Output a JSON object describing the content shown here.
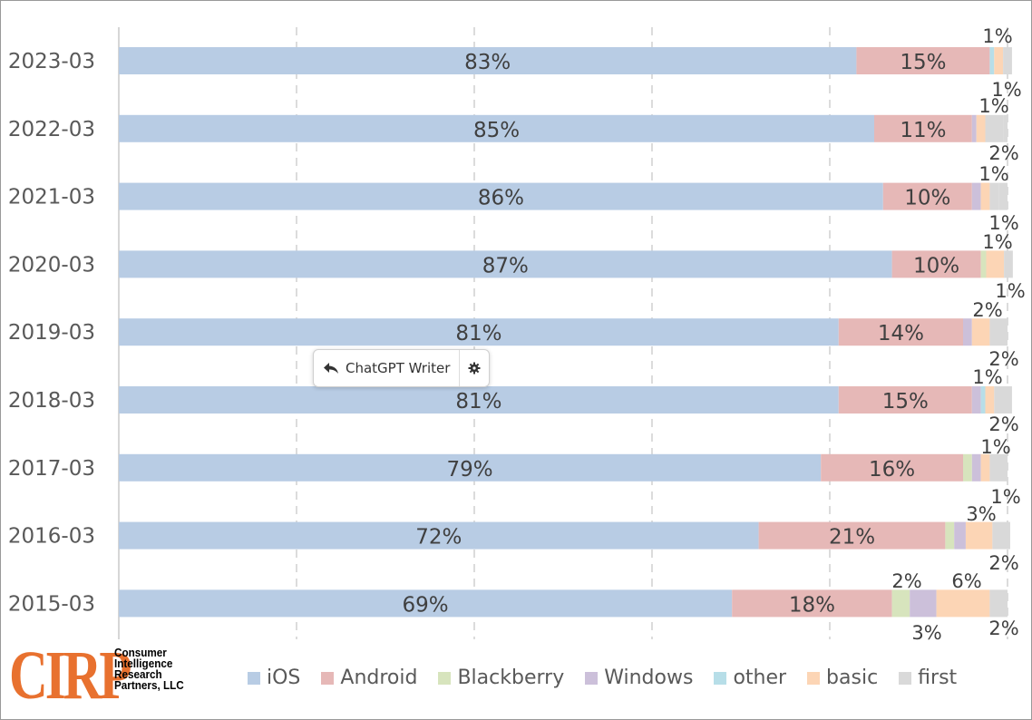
{
  "chart_data": {
    "type": "bar",
    "orientation": "horizontal",
    "stacked": true,
    "xlim": [
      0,
      100
    ],
    "grid": "vertical-dashed",
    "legend_position": "bottom",
    "categories": [
      "2023-03",
      "2022-03",
      "2021-03",
      "2020-03",
      "2019-03",
      "2018-03",
      "2017-03",
      "2016-03",
      "2015-03"
    ],
    "series": [
      {
        "name": "iOS",
        "color": "#b8cce4",
        "values": [
          83,
          85,
          86,
          87,
          81,
          81,
          79,
          72,
          69
        ]
      },
      {
        "name": "Android",
        "color": "#e6b8b7",
        "values": [
          15,
          11,
          10,
          10,
          14,
          15,
          16,
          21,
          18
        ]
      },
      {
        "name": "Blackberry",
        "color": "#d7e4bd",
        "values": [
          0,
          0,
          0,
          0.6,
          0,
          0,
          1,
          1,
          2
        ]
      },
      {
        "name": "Windows",
        "color": "#ccc0da",
        "values": [
          0,
          0.5,
          1,
          0,
          1,
          1,
          1,
          1.3,
          3
        ]
      },
      {
        "name": "other",
        "color": "#b7dee8",
        "values": [
          0.5,
          0,
          0,
          0,
          0,
          0.5,
          0,
          0,
          0
        ]
      },
      {
        "name": "basic",
        "color": "#fcd5b5",
        "values": [
          1,
          1,
          1,
          2,
          2,
          1,
          1,
          3,
          6
        ]
      },
      {
        "name": "first",
        "color": "#d9d9d9",
        "values": [
          1,
          2,
          1,
          1,
          2,
          2,
          2,
          2,
          2
        ]
      }
    ],
    "data_labels": [
      [
        "83%",
        "15%",
        "1%",
        "1%"
      ],
      [
        "85%",
        "11%",
        "1%",
        "2%"
      ],
      [
        "86%",
        "10%",
        "1%",
        "1%"
      ],
      [
        "87%",
        "10%",
        "1%",
        "1%"
      ],
      [
        "81%",
        "14%",
        "2%",
        "2%"
      ],
      [
        "81%",
        "15%",
        "1%",
        "2%"
      ],
      [
        "79%",
        "16%",
        "1%",
        "1%"
      ],
      [
        "72%",
        "21%",
        "3%",
        "2%"
      ],
      [
        "69%",
        "18%",
        "2%",
        "3%",
        "6%",
        "2%"
      ]
    ]
  },
  "logo": {
    "mark": "CIRP",
    "lines": [
      "Consumer",
      "Intelligence",
      "Research",
      "Partners, LLC"
    ]
  },
  "popup": {
    "label": "ChatGPT Writer"
  }
}
